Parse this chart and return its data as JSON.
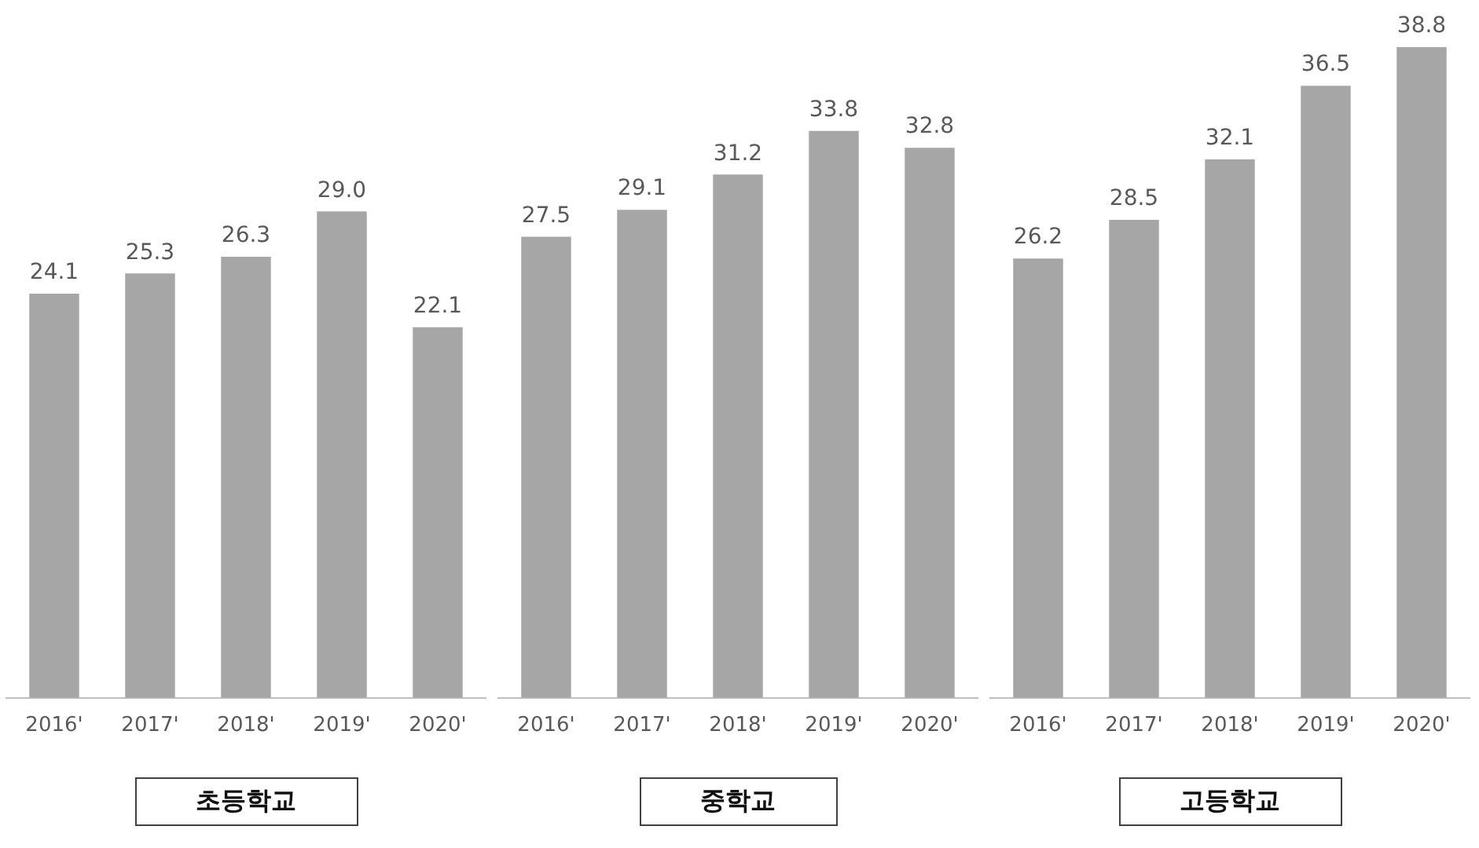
{
  "chart_data": [
    {
      "type": "bar",
      "title": "초등학교",
      "categories": [
        "2016'",
        "2017'",
        "2018'",
        "2019'",
        "2020'"
      ],
      "values": [
        24.1,
        25.3,
        26.3,
        29.0,
        22.1
      ],
      "value_labels": [
        "24.1",
        "25.3",
        "26.3",
        "29.0",
        "22.1"
      ],
      "color": "#a6a6a6",
      "legend": false,
      "grid": false,
      "tick_labels": "x"
    },
    {
      "type": "bar",
      "title": "중학교",
      "categories": [
        "2016'",
        "2017'",
        "2018'",
        "2019'",
        "2020'"
      ],
      "values": [
        27.5,
        29.1,
        31.2,
        33.8,
        32.8
      ],
      "value_labels": [
        "27.5",
        "29.1",
        "31.2",
        "33.8",
        "32.8"
      ],
      "color": "#a6a6a6",
      "legend": false,
      "grid": false,
      "tick_labels": "x"
    },
    {
      "type": "bar",
      "title": "고등학교",
      "categories": [
        "2016'",
        "2017'",
        "2018'",
        "2019'",
        "2020'"
      ],
      "values": [
        26.2,
        28.5,
        32.1,
        36.5,
        38.8
      ],
      "value_labels": [
        "26.2",
        "28.5",
        "32.1",
        "36.5",
        "38.8"
      ],
      "color": "#a6a6a6",
      "legend": false,
      "grid": false,
      "tick_labels": "x"
    }
  ]
}
